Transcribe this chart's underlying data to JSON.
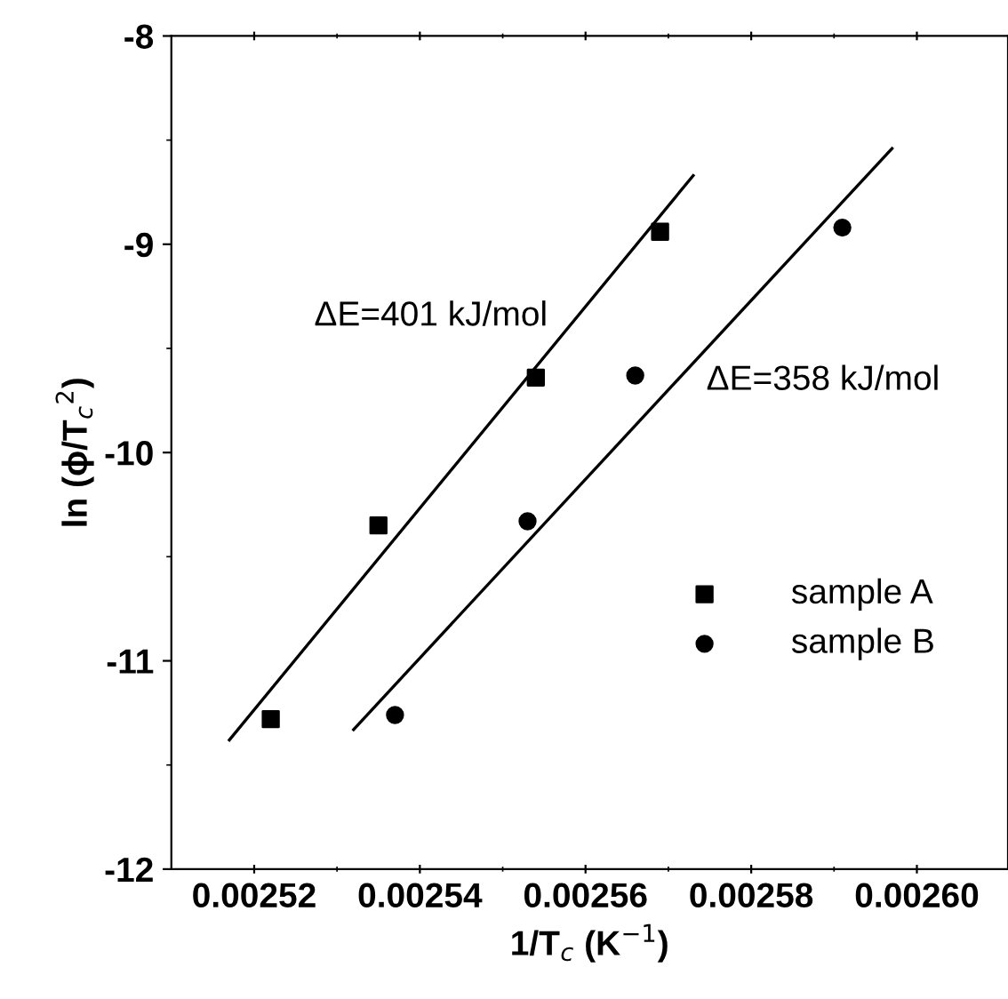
{
  "chart_data": {
    "type": "scatter",
    "xlabel": "1/T$_{c}$ (K$^{−1}$)",
    "ylabel": "ln (ϕ/T$_{c}$$^{2}$)",
    "series": [
      {
        "name": "sample A",
        "color": "#000000",
        "marker": "square",
        "x": [
          0.002522,
          0.002535,
          0.002554,
          0.002569
        ],
        "values": [
          -11.28,
          -10.35,
          -9.64,
          -8.94
        ]
      },
      {
        "name": "sample B",
        "color": "#000000",
        "marker": "circle",
        "x": [
          0.002537,
          0.002553,
          0.002566,
          0.002591
        ],
        "values": [
          -11.26,
          -10.33,
          -9.63,
          -8.92
        ]
      },
      {
        "type": "line",
        "color": "#000000",
        "x": [
          0.002517,
          0.002573
        ],
        "values": [
          -11.38,
          -8.67
        ]
      },
      {
        "type": "line",
        "color": "#000000",
        "x": [
          0.002532,
          0.002597
        ],
        "values": [
          -11.33,
          -8.54
        ]
      }
    ],
    "annotations": [
      "ΔE=401 kJ/mol",
      "ΔE=358 kJ/mol"
    ],
    "xlim": [
      0.00251,
      0.002611
    ],
    "ylim": [
      -12,
      -8
    ],
    "xticks": [
      {
        "value": 0.00252,
        "label": "0.00252"
      },
      {
        "value": 0.00254,
        "label": "0.00254"
      },
      {
        "value": 0.00256,
        "label": "0.00256"
      },
      {
        "value": 0.00258,
        "label": "0.00258"
      },
      {
        "value": 0.0026,
        "label": "0.00260"
      }
    ],
    "yticks": [
      -12,
      -11,
      -10,
      -9,
      -8
    ],
    "grid": false,
    "legend": "right"
  }
}
